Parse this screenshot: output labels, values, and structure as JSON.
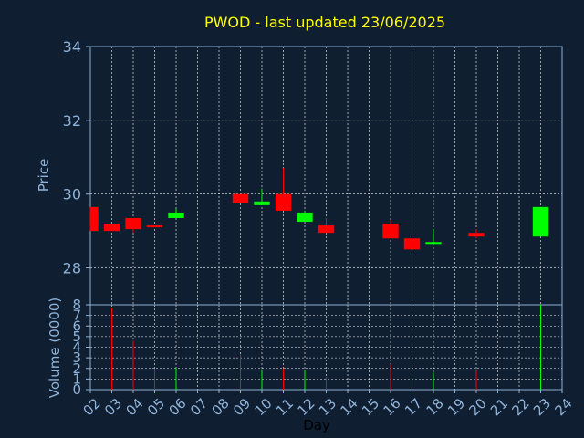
{
  "chart_data": {
    "type": "candlestick",
    "title": "PWOD - last updated 23/06/2025",
    "xlabel": "Day",
    "colors": {
      "background": "#0f1e30",
      "axis": "#8fb3d9",
      "title": "#ffff00",
      "up": "#00ff00",
      "down": "#ff0000",
      "grid": "#ffffff"
    },
    "x_ticks": [
      "02",
      "03",
      "04",
      "05",
      "06",
      "07",
      "08",
      "09",
      "10",
      "11",
      "12",
      "13",
      "14",
      "15",
      "16",
      "17",
      "18",
      "19",
      "20",
      "21",
      "22",
      "23",
      "24"
    ],
    "price_panel": {
      "ylabel": "Price",
      "ylim": [
        27,
        34
      ],
      "y_ticks": [
        28,
        30,
        32,
        34
      ],
      "grid": true
    },
    "volume_panel": {
      "ylabel": "Volume (0000)",
      "ylim": [
        0,
        8
      ],
      "y_ticks": [
        0,
        1,
        2,
        3,
        4,
        5,
        6,
        7,
        8
      ],
      "grid": true
    },
    "candles": [
      {
        "day": "02",
        "open": 29.65,
        "close": 29.0,
        "high": 29.65,
        "low": 29.0,
        "volume": 0
      },
      {
        "day": "03",
        "open": 29.2,
        "close": 29.0,
        "high": 29.2,
        "low": 29.0,
        "volume": 7.7
      },
      {
        "day": "04",
        "open": 29.35,
        "close": 29.05,
        "high": 29.35,
        "low": 28.95,
        "volume": 4.6
      },
      {
        "day": "05",
        "open": 29.15,
        "close": 29.1,
        "high": 29.15,
        "low": 29.1,
        "volume": 2.0
      },
      {
        "day": "06",
        "open": 29.35,
        "close": 29.5,
        "high": 29.6,
        "low": 29.35,
        "volume": 2.1
      },
      {
        "day": "09",
        "open": 30.0,
        "close": 29.75,
        "high": 30.0,
        "low": 29.75,
        "volume": 3.3
      },
      {
        "day": "10",
        "open": 29.7,
        "close": 29.8,
        "high": 30.15,
        "low": 29.7,
        "volume": 1.9
      },
      {
        "day": "11",
        "open": 30.0,
        "close": 29.55,
        "high": 30.7,
        "low": 29.55,
        "volume": 2.0
      },
      {
        "day": "12",
        "open": 29.25,
        "close": 29.5,
        "high": 29.55,
        "low": 29.25,
        "volume": 1.8
      },
      {
        "day": "13",
        "open": 29.15,
        "close": 28.95,
        "high": 29.35,
        "low": 28.95,
        "volume": 1.2
      },
      {
        "day": "16",
        "open": 29.2,
        "close": 28.8,
        "high": 29.3,
        "low": 28.8,
        "volume": 2.4
      },
      {
        "day": "17",
        "open": 28.8,
        "close": 28.5,
        "high": 28.8,
        "low": 28.5,
        "volume": 1.7
      },
      {
        "day": "18",
        "open": 28.65,
        "close": 28.7,
        "high": 29.05,
        "low": 28.65,
        "volume": 1.6
      },
      {
        "day": "20",
        "open": 28.95,
        "close": 28.85,
        "high": 29.05,
        "low": 28.8,
        "volume": 1.8
      },
      {
        "day": "23",
        "open": 28.85,
        "close": 29.65,
        "high": 29.65,
        "low": 28.85,
        "volume": 8.0
      }
    ]
  }
}
